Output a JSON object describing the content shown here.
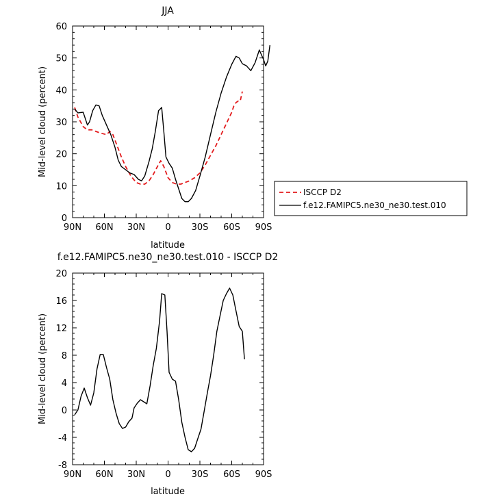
{
  "chart_data": [
    {
      "type": "line",
      "title": "JJA",
      "xlabel": "latitude",
      "ylabel": "Mid-level cloud (percent)",
      "xlim": [
        90,
        -90
      ],
      "ylim": [
        0,
        60
      ],
      "x_tick_labels": [
        "90N",
        "60N",
        "30N",
        "0",
        "30S",
        "60S",
        "90S"
      ],
      "y_tick_labels": [
        "0",
        "10",
        "20",
        "30",
        "40",
        "50",
        "60"
      ],
      "y_ticks": [
        0,
        10,
        20,
        30,
        40,
        50,
        60
      ],
      "legend_position": "right",
      "series": [
        {
          "name": "ISCCP D2",
          "color": "#e31a1c",
          "dashed": true,
          "points": [
            [
              88,
              34.5
            ],
            [
              85,
              31.5
            ],
            [
              80,
              28.5
            ],
            [
              76,
              27.5
            ],
            [
              72,
              27.5
            ],
            [
              68,
              27
            ],
            [
              64,
              26.5
            ],
            [
              58,
              26
            ],
            [
              55,
              27
            ],
            [
              52,
              26
            ],
            [
              48,
              22.5
            ],
            [
              44,
              19
            ],
            [
              40,
              16
            ],
            [
              35,
              13
            ],
            [
              30,
              11
            ],
            [
              26,
              10.5
            ],
            [
              22,
              10.5
            ],
            [
              18,
              11.5
            ],
            [
              14,
              13.5
            ],
            [
              10,
              16
            ],
            [
              7,
              17.8
            ],
            [
              4,
              16
            ],
            [
              0,
              12.5
            ],
            [
              -4,
              11
            ],
            [
              -8,
              10.5
            ],
            [
              -12,
              10.5
            ],
            [
              -16,
              11
            ],
            [
              -20,
              11.5
            ],
            [
              -25,
              12.5
            ],
            [
              -30,
              14
            ],
            [
              -35,
              16.5
            ],
            [
              -40,
              19.5
            ],
            [
              -45,
              22.5
            ],
            [
              -50,
              26
            ],
            [
              -55,
              29.5
            ],
            [
              -60,
              33
            ],
            [
              -62,
              35
            ],
            [
              -64,
              36
            ],
            [
              -66,
              36.5
            ],
            [
              -68,
              36.5
            ],
            [
              -70,
              39.5
            ]
          ]
        },
        {
          "name": "f.e12.FAMIPC5.ne30_ne30.test.010",
          "color": "#000000",
          "dashed": false,
          "points": [
            [
              88,
              34
            ],
            [
              85,
              32.8
            ],
            [
              80,
              33
            ],
            [
              76,
              29
            ],
            [
              74,
              30
            ],
            [
              71,
              33.5
            ],
            [
              68,
              35.3
            ],
            [
              65,
              35
            ],
            [
              62,
              32
            ],
            [
              58,
              29
            ],
            [
              54,
              26
            ],
            [
              50,
              22
            ],
            [
              47,
              18
            ],
            [
              44,
              16
            ],
            [
              40,
              15
            ],
            [
              36,
              14
            ],
            [
              32,
              13.5
            ],
            [
              28,
              12
            ],
            [
              25,
              11.5
            ],
            [
              22,
              13
            ],
            [
              18,
              17.5
            ],
            [
              15,
              21.5
            ],
            [
              12,
              27
            ],
            [
              9,
              33.5
            ],
            [
              6,
              34.5
            ],
            [
              4,
              27
            ],
            [
              2,
              19
            ],
            [
              -1,
              17
            ],
            [
              -4,
              15.5
            ],
            [
              -7,
              12
            ],
            [
              -10,
              9
            ],
            [
              -13,
              6
            ],
            [
              -16,
              5
            ],
            [
              -19,
              5
            ],
            [
              -22,
              6
            ],
            [
              -26,
              8.5
            ],
            [
              -30,
              13
            ],
            [
              -35,
              19
            ],
            [
              -40,
              26
            ],
            [
              -45,
              33
            ],
            [
              -50,
              39
            ],
            [
              -55,
              44
            ],
            [
              -60,
              48
            ],
            [
              -64,
              50.5
            ],
            [
              -67,
              50
            ],
            [
              -70,
              48.2
            ],
            [
              -74,
              47.5
            ],
            [
              -78,
              46
            ],
            [
              -82,
              48.5
            ],
            [
              -86,
              52.5
            ],
            [
              -90,
              49.5
            ],
            [
              -92,
              47.5
            ],
            [
              -94,
              49
            ],
            [
              -96,
              54
            ]
          ]
        }
      ]
    },
    {
      "type": "line",
      "title": "f.e12.FAMIPC5.ne30_ne30.test.010 - ISCCP D2",
      "xlabel": "latitude",
      "ylabel": "Mid-level cloud (percent)",
      "xlim": [
        90,
        -90
      ],
      "ylim": [
        -8,
        20
      ],
      "x_tick_labels": [
        "90N",
        "60N",
        "30N",
        "0",
        "30S",
        "60S",
        "90S"
      ],
      "y_tick_labels": [
        "-8",
        "-4",
        "0",
        "4",
        "8",
        "12",
        "16",
        "20"
      ],
      "y_ticks": [
        -8,
        -4,
        0,
        4,
        8,
        12,
        16,
        20
      ],
      "series": [
        {
          "name": "",
          "color": "#000000",
          "dashed": false,
          "points": [
            [
              88,
              -0.7
            ],
            [
              85,
              0
            ],
            [
              82,
              2
            ],
            [
              79,
              3.2
            ],
            [
              76,
              1.8
            ],
            [
              73,
              0.7
            ],
            [
              70,
              2.5
            ],
            [
              67,
              6
            ],
            [
              64,
              8.1
            ],
            [
              61,
              8.1
            ],
            [
              58,
              6.2
            ],
            [
              55,
              4.5
            ],
            [
              52,
              1.5
            ],
            [
              49,
              -0.5
            ],
            [
              46,
              -2
            ],
            [
              43,
              -2.7
            ],
            [
              40,
              -2.5
            ],
            [
              37,
              -1.7
            ],
            [
              34,
              -1.2
            ],
            [
              32,
              0.3
            ],
            [
              29,
              1
            ],
            [
              26,
              1.5
            ],
            [
              23,
              1.2
            ],
            [
              20,
              0.9
            ],
            [
              17,
              3.5
            ],
            [
              14,
              6.5
            ],
            [
              11,
              9
            ],
            [
              8,
              13
            ],
            [
              6,
              17
            ],
            [
              3,
              16.8
            ],
            [
              1,
              11.5
            ],
            [
              -1,
              5.5
            ],
            [
              -4,
              4.5
            ],
            [
              -7,
              4.2
            ],
            [
              -10,
              1.5
            ],
            [
              -13,
              -1.8
            ],
            [
              -16,
              -4
            ],
            [
              -19,
              -5.8
            ],
            [
              -22,
              -6.1
            ],
            [
              -25,
              -5.6
            ],
            [
              -28,
              -4.2
            ],
            [
              -31,
              -2.8
            ],
            [
              -34,
              -0.2
            ],
            [
              -37,
              2.5
            ],
            [
              -40,
              5
            ],
            [
              -43,
              8
            ],
            [
              -46,
              11.5
            ],
            [
              -49,
              13.8
            ],
            [
              -52,
              16
            ],
            [
              -55,
              17
            ],
            [
              -58,
              17.8
            ],
            [
              -61,
              16.8
            ],
            [
              -64,
              14.5
            ],
            [
              -67,
              12.2
            ],
            [
              -70,
              11.5
            ],
            [
              -72,
              7.4
            ]
          ]
        }
      ]
    }
  ]
}
